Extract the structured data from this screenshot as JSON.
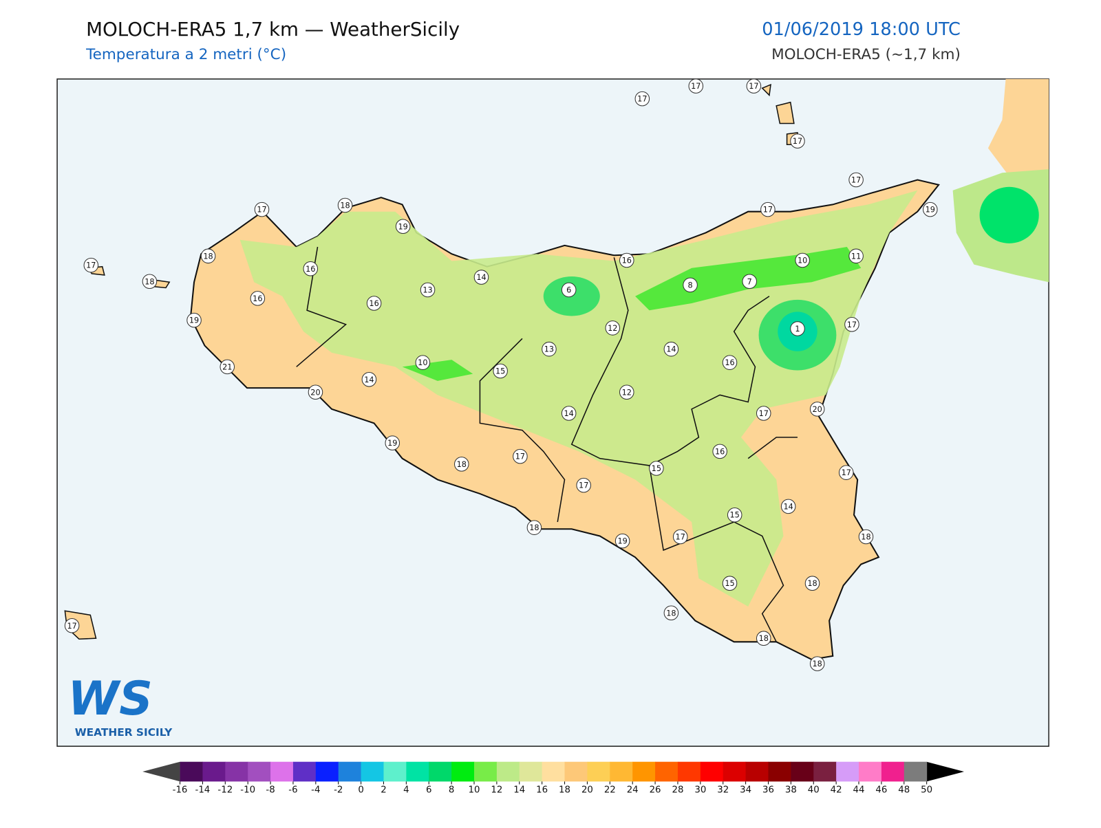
{
  "header": {
    "title": "MOLOCH-ERA5 1,7 km — WeatherSicily",
    "subtitle": "Temperatura a 2 metri (°C)",
    "datetime": "01/06/2019 18:00 UTC",
    "model": "MOLOCH-ERA5 (~1,7 km)"
  },
  "stations": [
    17,
    17,
    17,
    17,
    17,
    17,
    19,
    17,
    18,
    19,
    18,
    17,
    18,
    16,
    16,
    19,
    21,
    20,
    16,
    13,
    14,
    6,
    16,
    8,
    7,
    10,
    11,
    1,
    17,
    12,
    14,
    16,
    13,
    10,
    15,
    14,
    12,
    14,
    17,
    20,
    19,
    18,
    17,
    15,
    16,
    17,
    17,
    14,
    15,
    18,
    19,
    17,
    18,
    15,
    18,
    18,
    18,
    18,
    17
  ],
  "colorbar": {
    "ticks": [
      -16,
      -14,
      -12,
      -10,
      -8,
      -6,
      -4,
      -2,
      0,
      2,
      4,
      6,
      8,
      10,
      12,
      14,
      16,
      18,
      20,
      22,
      24,
      26,
      28,
      30,
      32,
      34,
      36,
      38,
      40,
      42,
      44,
      46,
      48,
      50
    ],
    "colors": [
      "#4a0a5a",
      "#6a1a8c",
      "#8633a6",
      "#a24fbf",
      "#dd72ea",
      "#5f2fc6",
      "#0a20ff",
      "#1e82dc",
      "#14c6e4",
      "#5ef0cc",
      "#00e3a4",
      "#00d86a",
      "#00ec10",
      "#78ec48",
      "#bdea88",
      "#dfe79a",
      "#ffdf9f",
      "#fdc878",
      "#fdcf55",
      "#ffb833",
      "#ff9500",
      "#ff6400",
      "#ff3800",
      "#ff0000",
      "#dc0000",
      "#b80000",
      "#8a0000",
      "#680018",
      "#7a2040",
      "#d69cf8",
      "#ff7cc8",
      "#f0208e",
      "#7c7c7c",
      "#3a3a3a"
    ]
  },
  "logo": {
    "mark": "WS",
    "name": "WEATHER SICILY"
  }
}
